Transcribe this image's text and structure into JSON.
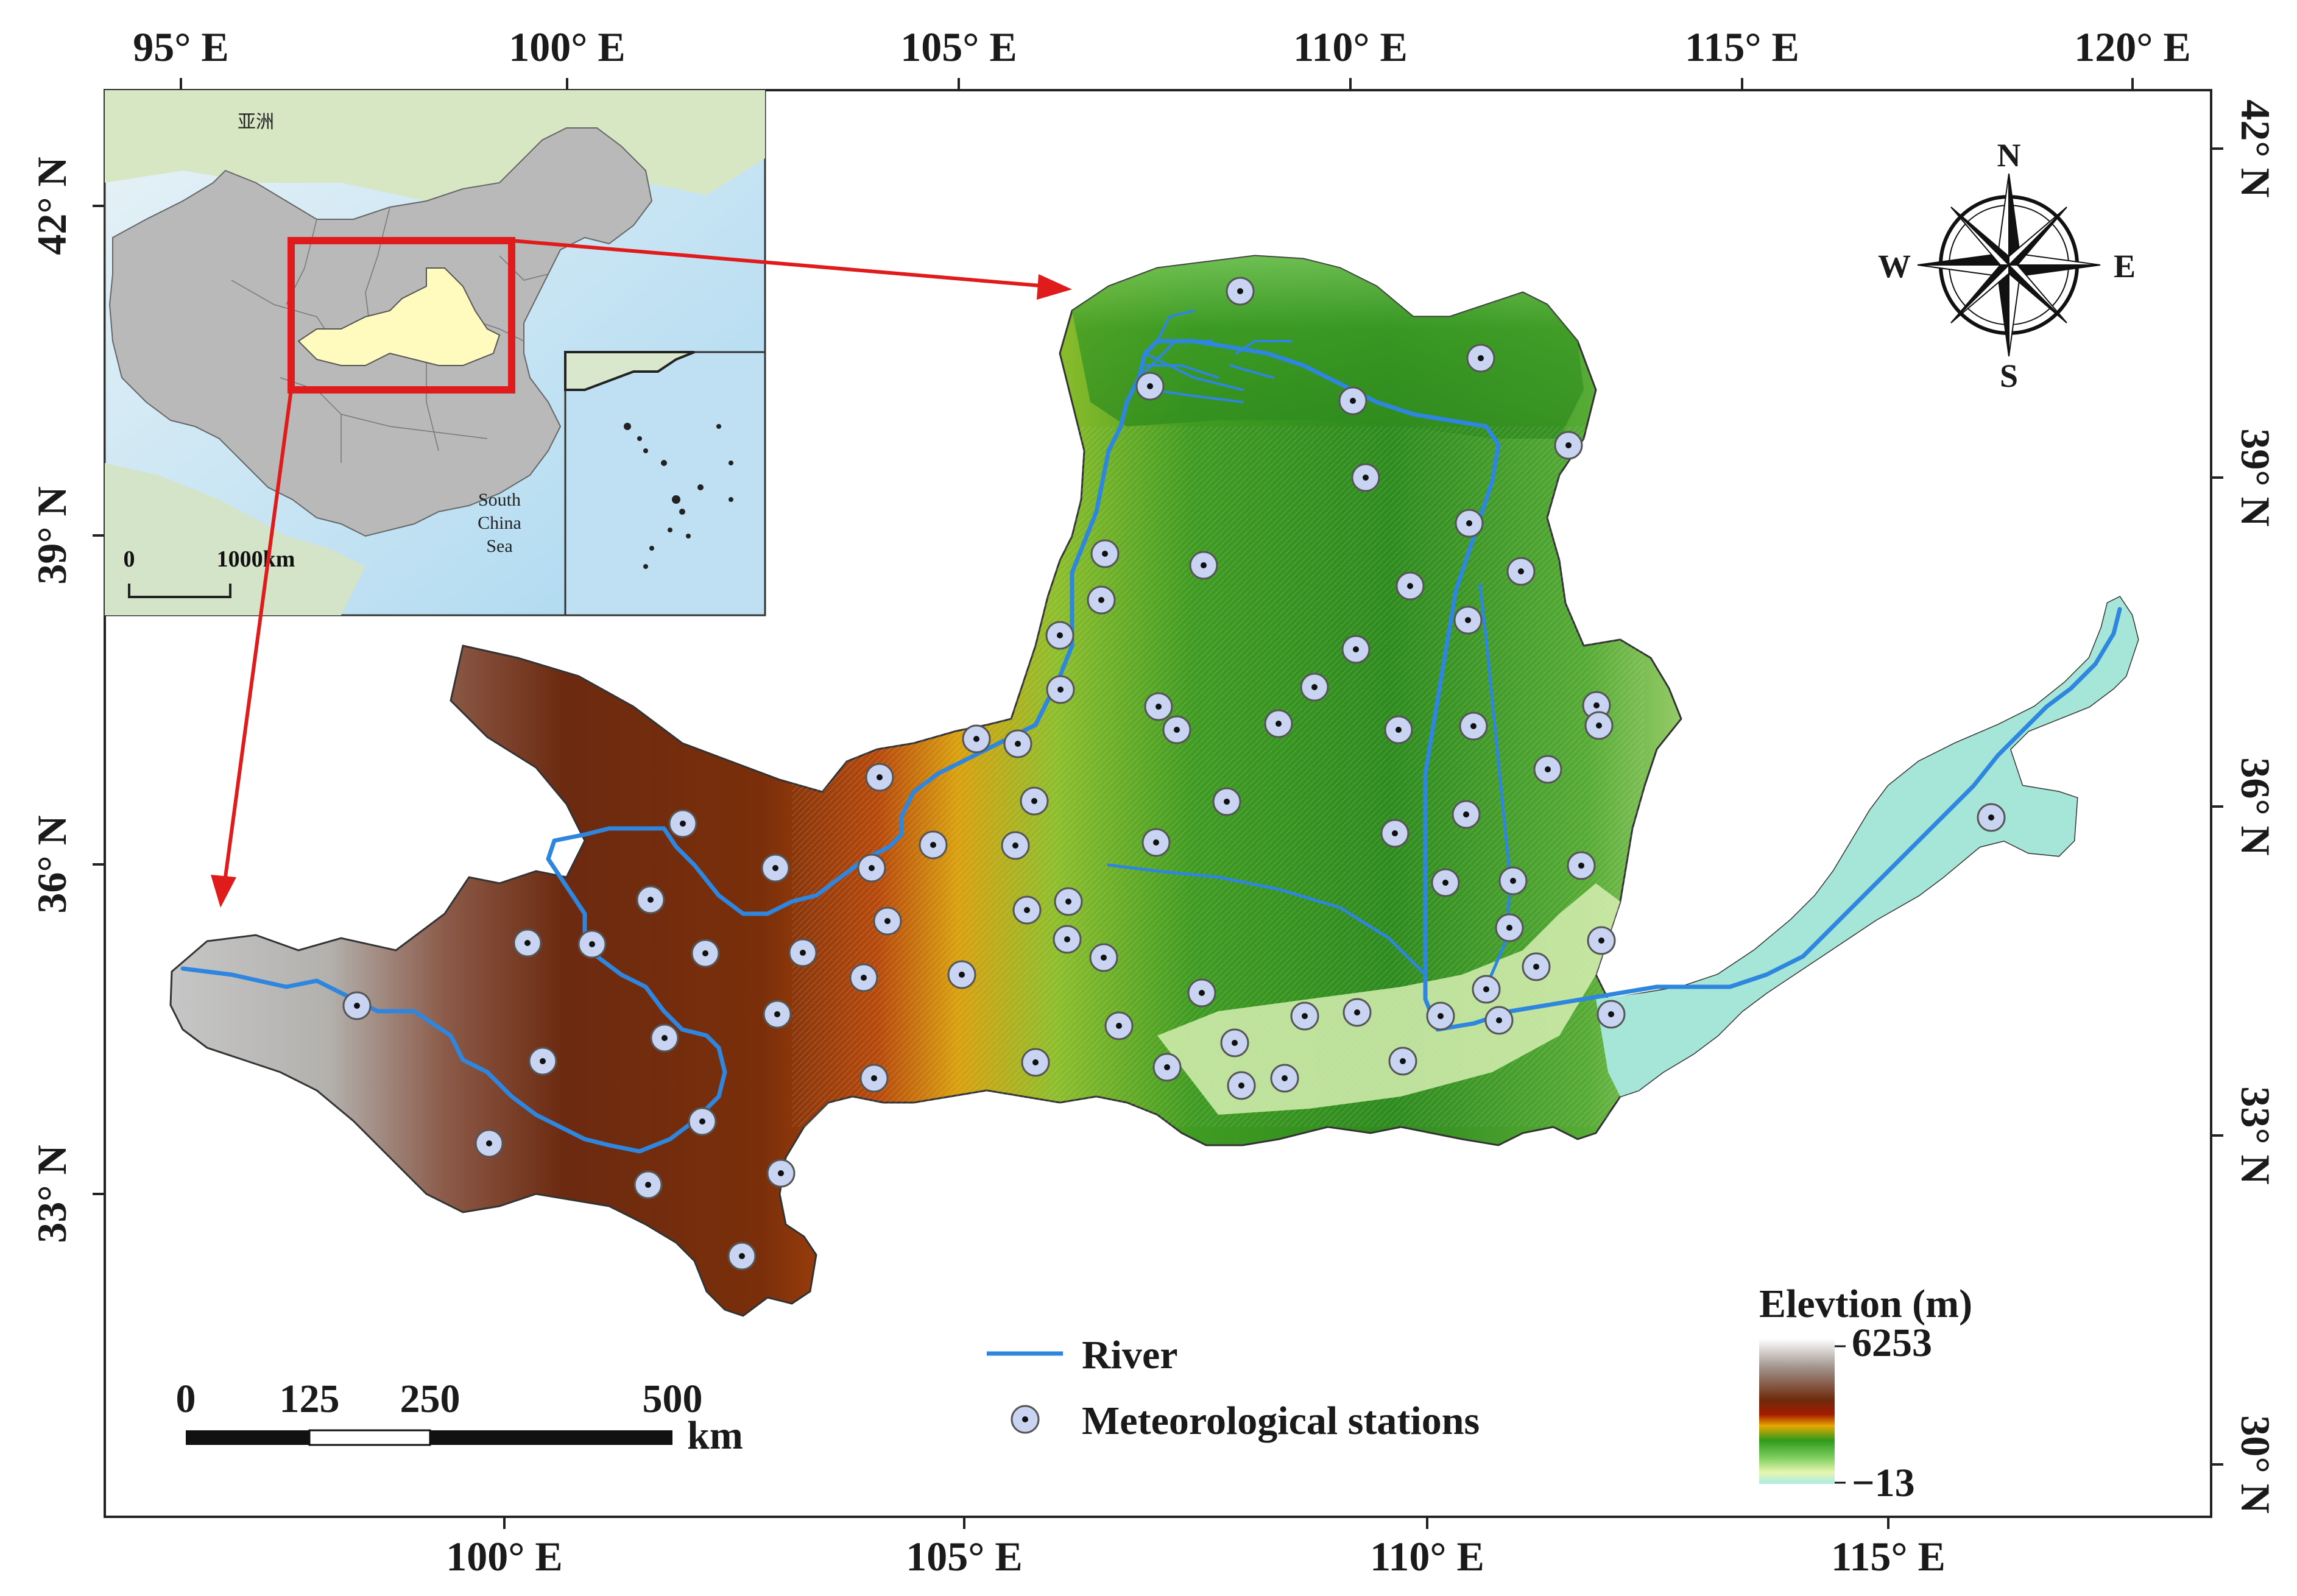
{
  "axes": {
    "top": [
      "95° E",
      "100° E",
      "105° E",
      "110° E",
      "115° E",
      "120° E"
    ],
    "bottom": [
      "100° E",
      "105° E",
      "110° E",
      "115° E"
    ],
    "left": [
      "42° N",
      "39° N",
      "36° N",
      "33° N"
    ],
    "right": [
      "42° N",
      "39° N",
      "36° N",
      "33° N",
      "30° N"
    ]
  },
  "inset": {
    "region_label": "亚洲",
    "sea_label": [
      "South",
      "China",
      "Sea"
    ],
    "scale_zero": "0",
    "scale_end": "1000km"
  },
  "compass": {
    "n": "N",
    "s": "S",
    "e": "E",
    "w": "W"
  },
  "legend": {
    "river": "River",
    "stations": "Meteorological stations",
    "elevation_title": "Elevtion (m)",
    "elevation_max": "6253",
    "elevation_min": "−13"
  },
  "scale_bar": {
    "labels": [
      "0",
      "125",
      "250",
      "500"
    ],
    "unit": "km"
  },
  "colors": {
    "river": "#2f86de",
    "station_fill": "#c9d3f2",
    "arrow": "#e01b1b",
    "inset_box": "#e01b1b",
    "china_fill": "#b9b9b9",
    "basin_highlight": "#fffbbf",
    "ocean": "#bfe0f3"
  }
}
